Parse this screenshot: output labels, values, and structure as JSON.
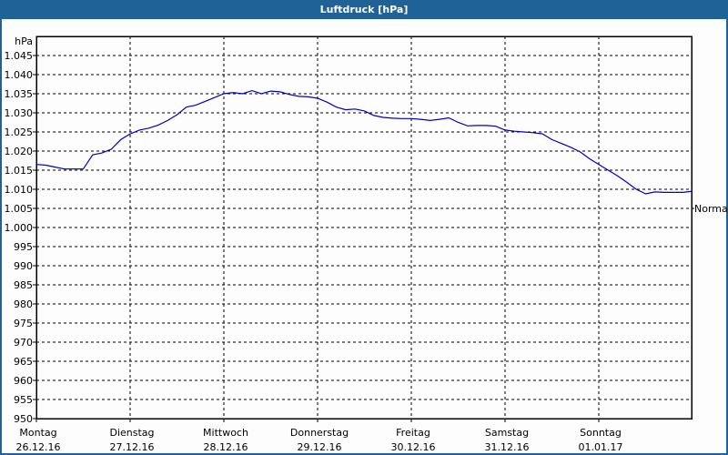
{
  "window": {
    "title": "Luftdruck [hPa]"
  },
  "chart_data": {
    "type": "line",
    "title": "Luftdruck [hPa]",
    "ylabel": "hPa",
    "xlabel": "",
    "ylim": [
      950,
      1050
    ],
    "grid": true,
    "y_ticks": [
      "1.045",
      "1.040",
      "1.035",
      "1.030",
      "1.025",
      "1.020",
      "1.015",
      "1.010",
      "1.005",
      "1.000",
      "995",
      "990",
      "985",
      "980",
      "975",
      "970",
      "965",
      "960",
      "955",
      "950"
    ],
    "x_ticks": [
      {
        "day": "Montag",
        "date": "26.12.16"
      },
      {
        "day": "Dienstag",
        "date": "27.12.16"
      },
      {
        "day": "Mittwoch",
        "date": "28.12.16"
      },
      {
        "day": "Donnerstag",
        "date": "29.12.16"
      },
      {
        "day": "Freitag",
        "date": "30.12.16"
      },
      {
        "day": "Samstag",
        "date": "31.12.16"
      },
      {
        "day": "Sonntag",
        "date": "01.01.17"
      }
    ],
    "reference_line": {
      "label": "Normal",
      "value": 1005
    },
    "series": [
      {
        "name": "Luftdruck",
        "color": "#0000c0",
        "x_days": [
          0,
          0.1,
          0.2,
          0.3,
          0.4,
          0.5,
          0.6,
          0.7,
          0.8,
          0.9,
          1.0,
          1.1,
          1.2,
          1.3,
          1.4,
          1.5,
          1.6,
          1.7,
          1.8,
          1.9,
          2.0,
          2.1,
          2.2,
          2.3,
          2.4,
          2.5,
          2.6,
          2.7,
          2.8,
          2.9,
          3.0,
          3.1,
          3.2,
          3.3,
          3.4,
          3.5,
          3.6,
          3.7,
          3.8,
          3.9,
          4.0,
          4.1,
          4.2,
          4.3,
          4.4,
          4.5,
          4.6,
          4.7,
          4.8,
          4.9,
          5.0,
          5.1,
          5.2,
          5.3,
          5.4,
          5.5,
          5.6,
          5.7,
          5.8,
          5.9,
          6.0,
          6.1,
          6.2,
          6.3,
          6.4,
          6.5,
          6.6,
          6.7,
          6.8,
          6.9,
          7.0
        ],
        "values": [
          1016.5,
          1016.3,
          1015.8,
          1015.3,
          1015.3,
          1015.3,
          1019.0,
          1019.5,
          1020.5,
          1023.0,
          1024.5,
          1025.5,
          1026.0,
          1026.8,
          1028.0,
          1029.5,
          1031.5,
          1032.0,
          1033.0,
          1034.0,
          1035.0,
          1035.3,
          1035.0,
          1035.8,
          1035.0,
          1035.7,
          1035.5,
          1034.8,
          1034.3,
          1034.2,
          1033.8,
          1032.8,
          1031.5,
          1030.8,
          1031.0,
          1030.5,
          1029.3,
          1028.8,
          1028.6,
          1028.5,
          1028.5,
          1028.3,
          1028.0,
          1028.3,
          1028.7,
          1027.5,
          1026.6,
          1026.7,
          1026.7,
          1026.5,
          1025.5,
          1025.2,
          1025.0,
          1024.8,
          1024.5,
          1023.0,
          1022.0,
          1021.0,
          1019.8,
          1018.0,
          1016.5,
          1015.0,
          1013.5,
          1011.8,
          1010.0,
          1008.8,
          1009.3,
          1009.2,
          1009.2,
          1009.2,
          1009.5
        ]
      }
    ]
  }
}
